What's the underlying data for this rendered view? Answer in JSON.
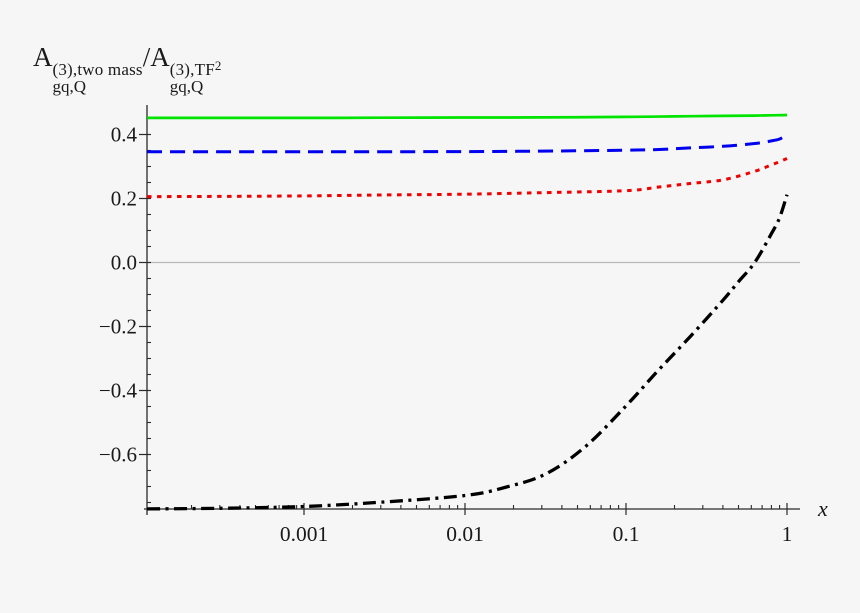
{
  "title": {
    "base1": "A",
    "sup1": "(3),two mass",
    "sub1": "gq,Q",
    "base2": "/A",
    "sup2": "(3),TF",
    "sup2_exp": "2",
    "sub2": "gq,Q"
  },
  "chart_data": {
    "type": "line",
    "title": "A_gq,Q^{(3),two mass} / A_gq,Q^{(3),TF^2}",
    "xlabel": "x",
    "ylabel": "",
    "x_scale": "log",
    "x_range": [
      0.0001,
      1.2
    ],
    "y_range": [
      -0.77,
      0.49
    ],
    "grid": false,
    "legend": "none",
    "zero_line": true,
    "colors": {
      "background": "#f6f6f6",
      "axis": "#2a2a2a",
      "zero_line": "#b9b9b9",
      "text": "#1a1a1a"
    },
    "x_ticks": [
      {
        "x": 0.001,
        "label": "0.001"
      },
      {
        "x": 0.01,
        "label": "0.01"
      },
      {
        "x": 0.1,
        "label": "0.1"
      },
      {
        "x": 1,
        "label": "1"
      }
    ],
    "x_minor_ticks": [
      0.0002,
      0.0003,
      0.0004,
      0.0005,
      0.0006,
      0.0007,
      0.0008,
      0.0009,
      0.002,
      0.003,
      0.004,
      0.005,
      0.006,
      0.007,
      0.008,
      0.009,
      0.02,
      0.03,
      0.04,
      0.05,
      0.06,
      0.07,
      0.08,
      0.09,
      0.2,
      0.3,
      0.4,
      0.5,
      0.6,
      0.7,
      0.8,
      0.9
    ],
    "y_ticks": [
      {
        "v": 0.4,
        "label": "0.4"
      },
      {
        "v": 0.2,
        "label": "0.2"
      },
      {
        "v": 0.0,
        "label": "0.0"
      },
      {
        "v": -0.2,
        "label": "−0.2"
      },
      {
        "v": -0.4,
        "label": "−0.4"
      },
      {
        "v": -0.6,
        "label": "−0.6"
      }
    ],
    "y_minor_ticks": [
      0.45,
      0.35,
      0.3,
      0.25,
      0.15,
      0.1,
      0.05,
      -0.05,
      -0.1,
      -0.15,
      -0.25,
      -0.3,
      -0.35,
      -0.45,
      -0.5,
      -0.55,
      -0.65,
      -0.7,
      -0.75
    ],
    "series": [
      {
        "name": "green-solid",
        "color": "#00e400",
        "dash": "solid",
        "width": 2.7,
        "points": [
          [
            0.000106,
            0.452
          ],
          [
            0.0003,
            0.452
          ],
          [
            0.001,
            0.452
          ],
          [
            0.003,
            0.4525
          ],
          [
            0.01,
            0.453
          ],
          [
            0.03,
            0.4535
          ],
          [
            0.1,
            0.455
          ],
          [
            0.2,
            0.4565
          ],
          [
            0.4,
            0.458
          ],
          [
            0.63,
            0.459
          ],
          [
            0.8,
            0.46
          ],
          [
            1.0,
            0.461
          ]
        ]
      },
      {
        "name": "blue-dashed",
        "color": "#0000f0",
        "dash": "dashed",
        "width": 3.0,
        "points": [
          [
            0.000106,
            0.346
          ],
          [
            0.001,
            0.346
          ],
          [
            0.01,
            0.3465
          ],
          [
            0.03,
            0.348
          ],
          [
            0.1,
            0.351
          ],
          [
            0.16,
            0.353
          ],
          [
            0.25,
            0.358
          ],
          [
            0.4,
            0.363
          ],
          [
            0.63,
            0.372
          ],
          [
            0.8,
            0.38
          ],
          [
            0.9,
            0.386
          ],
          [
            1.0,
            0.398
          ]
        ]
      },
      {
        "name": "red-dotted",
        "color": "#f20000",
        "dash": "dotted",
        "width": 3.0,
        "points": [
          [
            0.000106,
            0.206
          ],
          [
            0.0003,
            0.2065
          ],
          [
            0.001,
            0.208
          ],
          [
            0.003,
            0.211
          ],
          [
            0.01,
            0.2135
          ],
          [
            0.03,
            0.218
          ],
          [
            0.1,
            0.2245
          ],
          [
            0.16,
            0.236
          ],
          [
            0.25,
            0.247
          ],
          [
            0.4,
            0.258
          ],
          [
            0.63,
            0.285
          ],
          [
            0.8,
            0.305
          ],
          [
            0.9,
            0.315
          ],
          [
            1.0,
            0.325
          ]
        ]
      },
      {
        "name": "black-dashdot",
        "color": "#000000",
        "dash": "dashdot",
        "width": 3.3,
        "points": [
          [
            0.000106,
            -0.77
          ],
          [
            0.0003,
            -0.768
          ],
          [
            0.001,
            -0.7625
          ],
          [
            0.003,
            -0.749
          ],
          [
            0.01,
            -0.728
          ],
          [
            0.018,
            -0.702
          ],
          [
            0.032,
            -0.66
          ],
          [
            0.056,
            -0.575
          ],
          [
            0.1,
            -0.448
          ],
          [
            0.16,
            -0.335
          ],
          [
            0.25,
            -0.232
          ],
          [
            0.4,
            -0.118
          ],
          [
            0.5,
            -0.06
          ],
          [
            0.63,
            0.0
          ],
          [
            0.8,
            0.09
          ],
          [
            0.9,
            0.14
          ],
          [
            1.0,
            0.212
          ]
        ]
      }
    ]
  }
}
